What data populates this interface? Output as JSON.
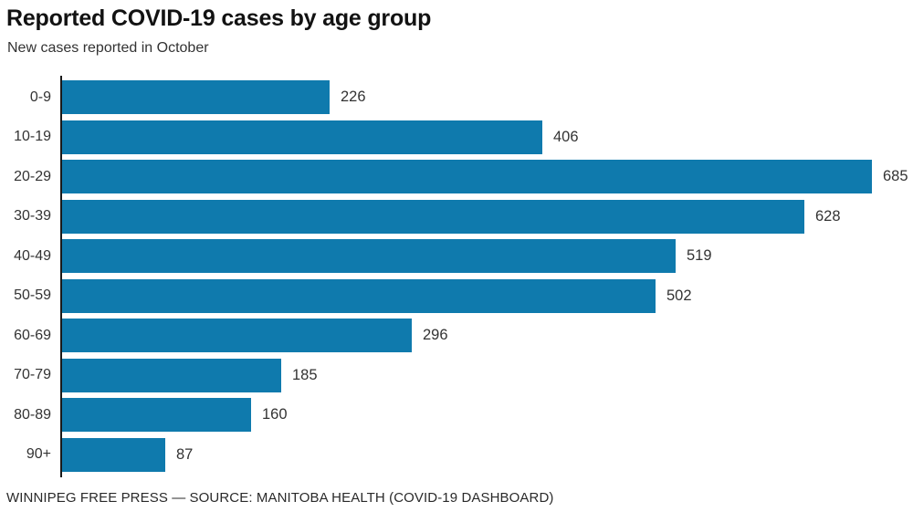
{
  "header": {
    "title": "Reported COVID-19 cases by age group",
    "subtitle": "New cases reported in October"
  },
  "footer": {
    "source_line": "WINNIPEG FREE PRESS — SOURCE: MANITOBA HEALTH (COVID-19 DASHBOARD)"
  },
  "colors": {
    "bar": "#0f7aad",
    "axis": "#1a1a1a",
    "title_text": "#121212",
    "body_text": "#333333"
  },
  "chart_data": {
    "type": "bar",
    "orientation": "horizontal",
    "title": "Reported COVID-19 cases by age group",
    "subtitle": "New cases reported in October",
    "source": "WINNIPEG FREE PRESS — SOURCE: MANITOBA HEALTH (COVID-19 DASHBOARD)",
    "categories": [
      "0-9",
      "10-19",
      "20-29",
      "30-39",
      "40-49",
      "50-59",
      "60-69",
      "70-79",
      "80-89",
      "90+"
    ],
    "values": [
      226,
      406,
      685,
      628,
      519,
      502,
      296,
      185,
      160,
      87
    ],
    "xlabel": "",
    "ylabel": "",
    "xlim": [
      0,
      685
    ],
    "grid": false,
    "legend": false,
    "data_labels": true
  }
}
